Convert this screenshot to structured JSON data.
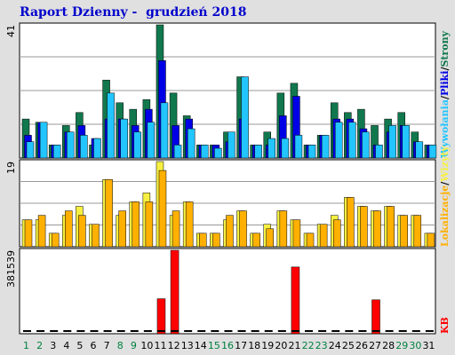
{
  "title": "Raport Dzienny -  grudzień 2018",
  "colors": {
    "background": "#e0e0e0",
    "panel": "#ffffff",
    "grid": "#999999",
    "pages": "#11784e",
    "files": "#0000e6",
    "hits": "#22c5ff",
    "visits": "#f7f040",
    "entry": "#ffb000",
    "kb": "#ff0000",
    "weekend_day": "#008040",
    "weekday": "#000000"
  },
  "chart_data": [
    {
      "type": "bar",
      "name": "top",
      "axis_label": "41",
      "ylim": [
        0,
        41
      ],
      "legend": [
        "Strony",
        "Pliki",
        "Wywołania"
      ],
      "series": [
        {
          "name": "Strony",
          "values": [
            12,
            11,
            4,
            10,
            14,
            4,
            24,
            17,
            15,
            18,
            41,
            20,
            13,
            4,
            4,
            8,
            25,
            4,
            8,
            20,
            23,
            4,
            7,
            17,
            14,
            15,
            10,
            12,
            14,
            8,
            4
          ]
        },
        {
          "name": "Pliki",
          "values": [
            7,
            11,
            4,
            8,
            10,
            6,
            12,
            12,
            10,
            15,
            30,
            10,
            12,
            4,
            4,
            5,
            12,
            4,
            4,
            13,
            19,
            4,
            7,
            12,
            12,
            9,
            4,
            8,
            10,
            5,
            4
          ]
        },
        {
          "name": "Wywołania",
          "values": [
            5,
            11,
            4,
            8,
            7,
            6,
            20,
            12,
            8,
            11,
            17,
            4,
            9,
            4,
            3,
            8,
            25,
            4,
            6,
            6,
            7,
            4,
            7,
            11,
            11,
            8,
            4,
            10,
            10,
            5,
            4
          ]
        }
      ]
    },
    {
      "type": "bar",
      "name": "middle",
      "axis_label": "19",
      "ylim": [
        0,
        19
      ],
      "legend": [
        "Wizyty",
        "Lokalizacje"
      ],
      "series": [
        {
          "name": "Wizyty",
          "values": [
            6,
            6,
            3,
            7,
            9,
            5,
            15,
            7,
            10,
            12,
            19,
            7,
            10,
            3,
            3,
            6,
            8,
            3,
            5,
            8,
            6,
            3,
            5,
            7,
            11,
            9,
            8,
            9,
            7,
            7,
            3
          ]
        },
        {
          "name": "Lokalizacje",
          "values": [
            6,
            7,
            3,
            8,
            7,
            5,
            15,
            8,
            10,
            10,
            17,
            8,
            10,
            3,
            3,
            7,
            8,
            3,
            4,
            8,
            6,
            3,
            5,
            6,
            11,
            9,
            8,
            9,
            7,
            7,
            3
          ]
        }
      ]
    },
    {
      "type": "bar",
      "name": "bottom",
      "axis_label": "381539",
      "ylim": [
        0,
        381539
      ],
      "legend": [
        "KB"
      ],
      "series": [
        {
          "name": "KB",
          "values": [
            0,
            0,
            0,
            0,
            0,
            0,
            0,
            0,
            0,
            0,
            160000,
            381539,
            0,
            0,
            0,
            0,
            0,
            0,
            0,
            0,
            305000,
            0,
            0,
            0,
            0,
            0,
            155000,
            0,
            0,
            0,
            0
          ]
        }
      ]
    }
  ],
  "days": [
    "1",
    "2",
    "3",
    "4",
    "5",
    "6",
    "7",
    "8",
    "9",
    "10",
    "11",
    "12",
    "13",
    "14",
    "15",
    "16",
    "17",
    "18",
    "19",
    "20",
    "21",
    "22",
    "23",
    "24",
    "25",
    "26",
    "27",
    "28",
    "29",
    "30",
    "31"
  ],
  "weekend_days": [
    "1",
    "2",
    "8",
    "9",
    "15",
    "16",
    "22",
    "23",
    "29",
    "30"
  ]
}
